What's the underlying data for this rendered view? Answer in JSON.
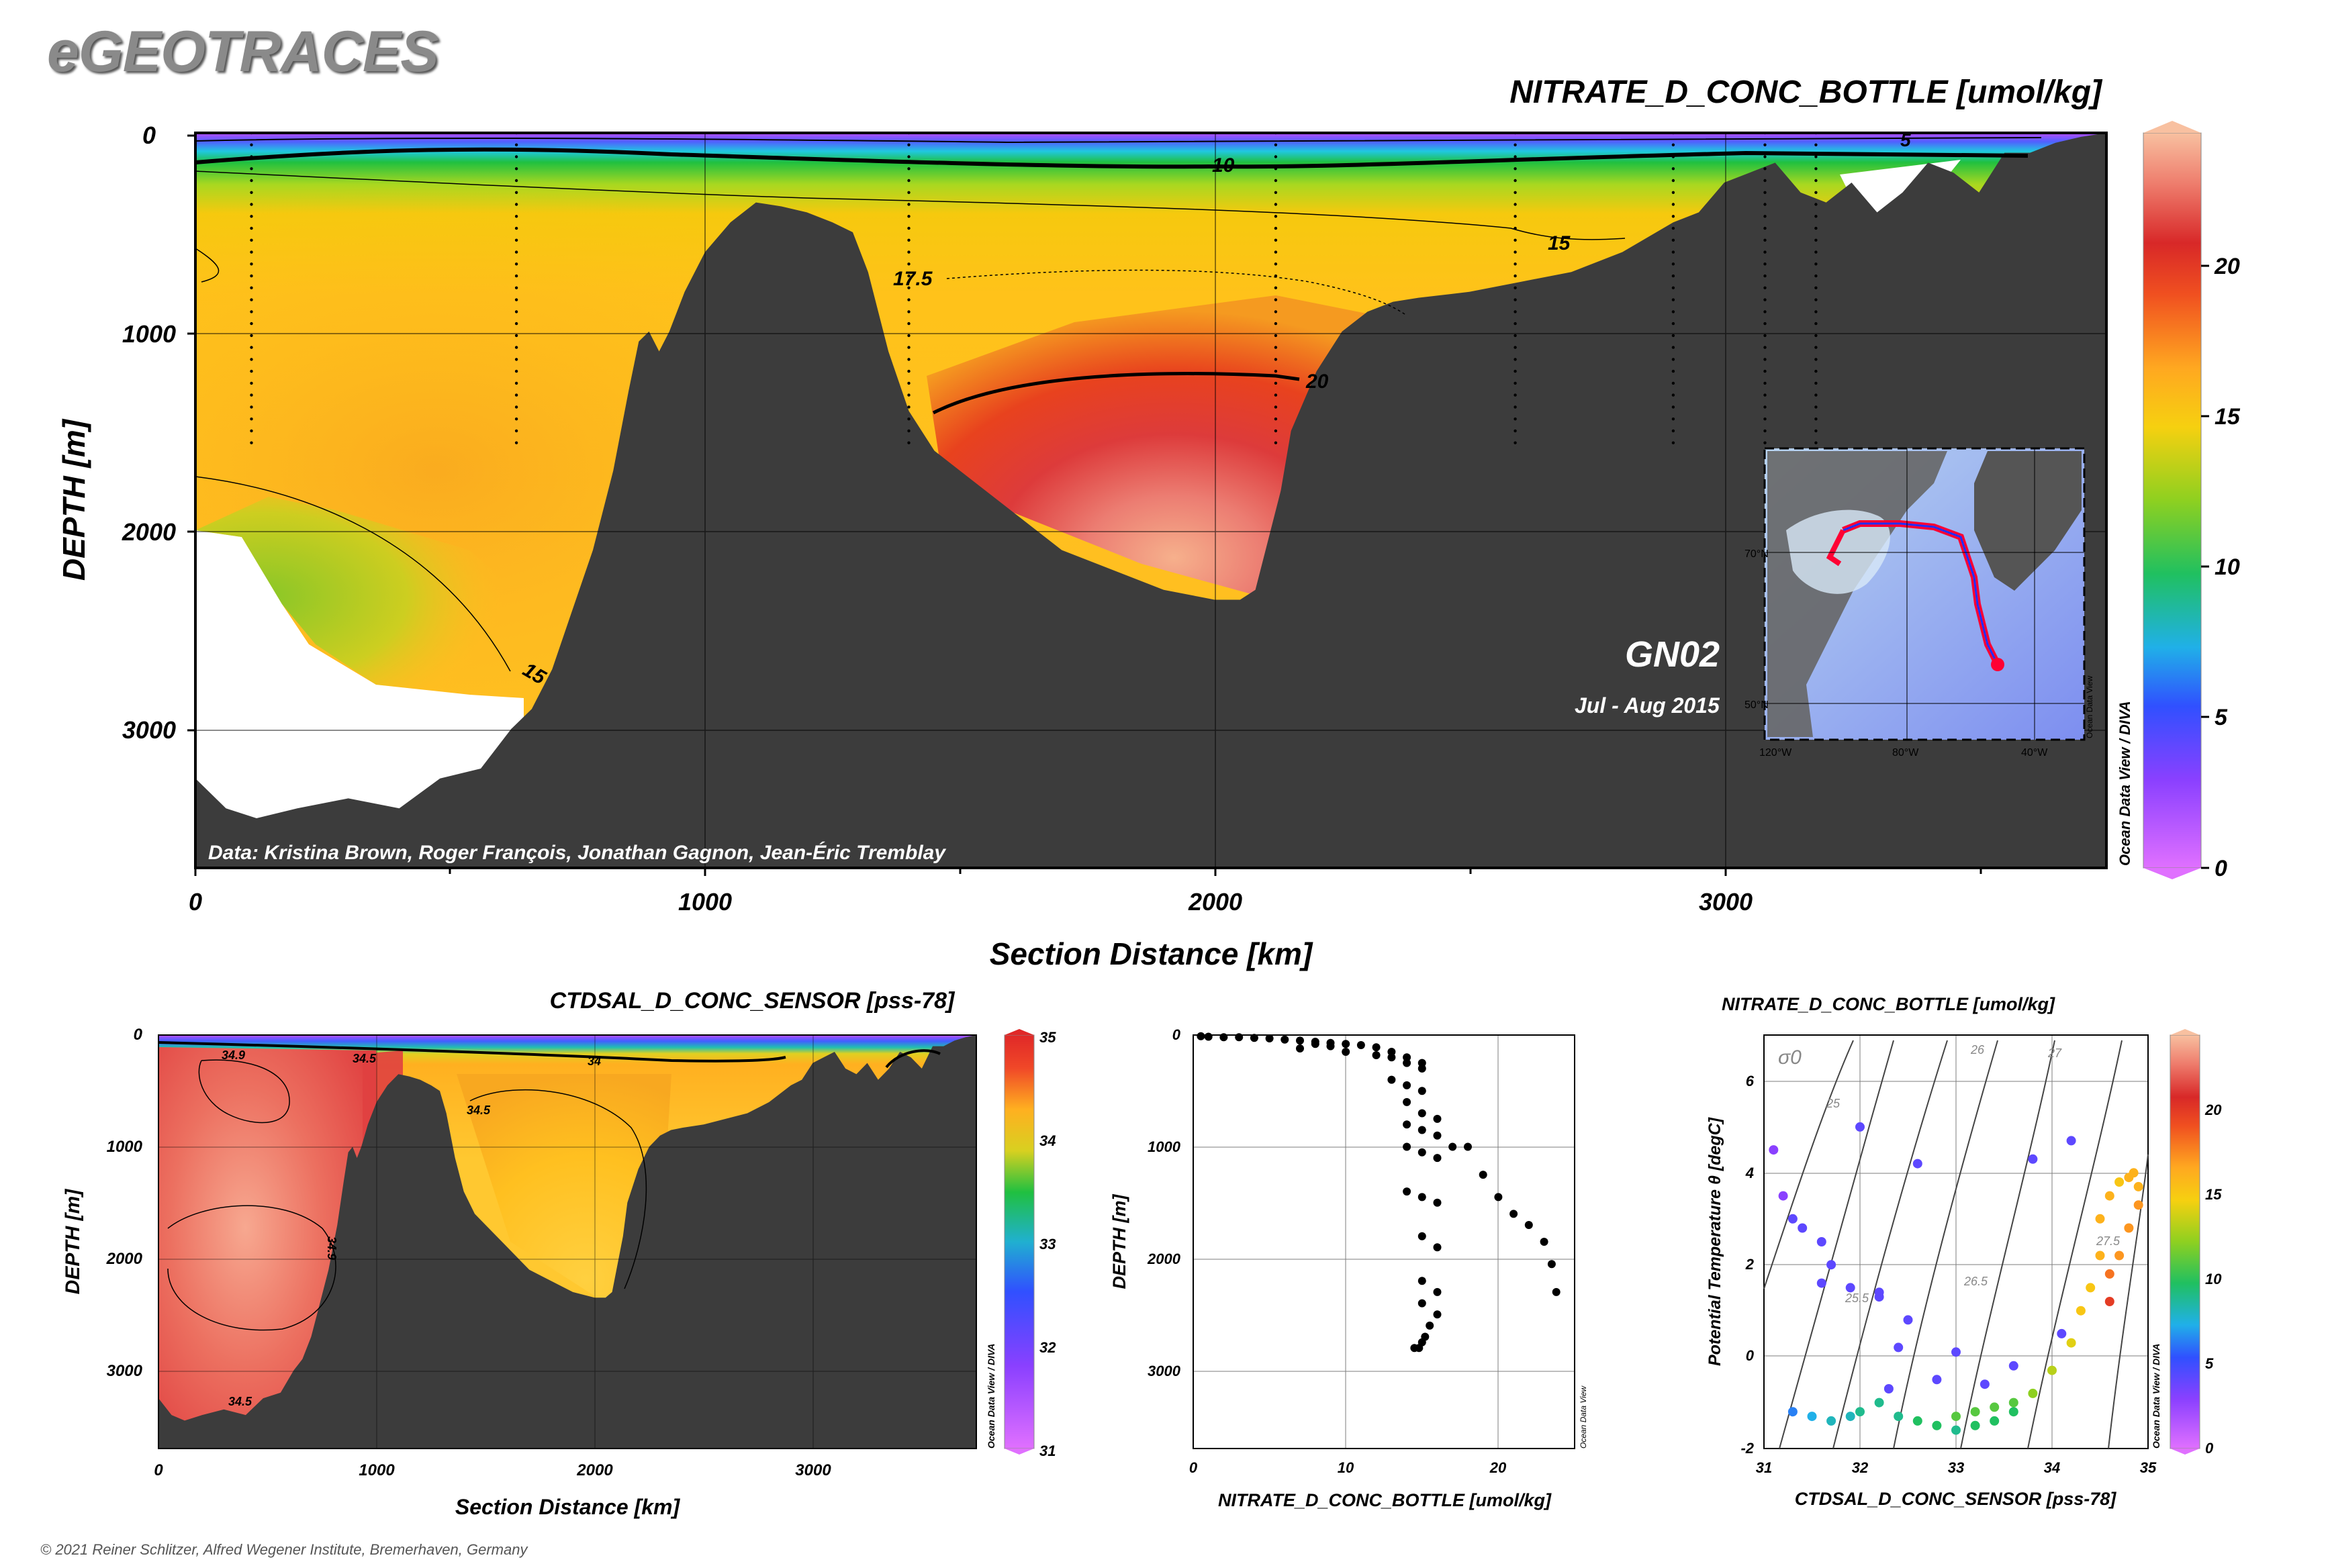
{
  "logo": "eGEOTRACES",
  "main": {
    "title": "NITRATE_D_CONC_BOTTLE [umol/kg]",
    "ylabel": "DEPTH [m]",
    "xlabel": "Section Distance [km]",
    "yticks": [
      "0",
      "1000",
      "2000",
      "3000"
    ],
    "xticks": [
      "0",
      "1000",
      "2000",
      "3000"
    ],
    "credit": "Data: Kristina Brown, Roger François, Jonathan Gagnon, Jean-Éric Tremblay",
    "cruise": "GN02",
    "date": "Jul - Aug 2015",
    "contour_labels": [
      "10",
      "15",
      "17.5",
      "20",
      "15",
      "5"
    ],
    "colorbar_ticks": [
      "0",
      "5",
      "10",
      "15",
      "20"
    ],
    "colorbar_caption": "Ocean Data View / DIVA",
    "map": {
      "lat_labels": [
        "70°N",
        "50°N"
      ],
      "lon_labels": [
        "120°W",
        "80°W",
        "40°W"
      ],
      "caption": "Ocean Data View"
    }
  },
  "salinity_panel": {
    "title": "CTDSAL_D_CONC_SENSOR [pss-78]",
    "ylabel": "DEPTH [m]",
    "xlabel": "Section Distance [km]",
    "yticks": [
      "0",
      "1000",
      "2000",
      "3000"
    ],
    "xticks": [
      "0",
      "1000",
      "2000",
      "3000"
    ],
    "contour_labels": [
      "34.9",
      "34.5",
      "34",
      "34.5",
      "34.9",
      "34.5"
    ],
    "colorbar_ticks": [
      "31",
      "32",
      "33",
      "34",
      "35"
    ],
    "colorbar_caption": "Ocean Data View / DIVA"
  },
  "profile_panel": {
    "xlabel": "NITRATE_D_CONC_BOTTLE [umol/kg]",
    "ylabel": "DEPTH [m]",
    "xticks": [
      "0",
      "10",
      "20"
    ],
    "yticks": [
      "0",
      "1000",
      "2000",
      "3000"
    ],
    "caption": "Ocean Data View"
  },
  "ts_panel": {
    "title": "NITRATE_D_CONC_BOTTLE [umol/kg]",
    "xlabel": "CTDSAL_D_CONC_SENSOR [pss-78]",
    "ylabel": "Potential Temperature θ [degC]",
    "xticks": [
      "31",
      "32",
      "33",
      "34",
      "35"
    ],
    "yticks": [
      "-2",
      "0",
      "2",
      "4",
      "6"
    ],
    "sigma_label": "σ0",
    "isopycnal_labels": [
      "25",
      "26",
      "27",
      "25.5",
      "26.5",
      "27.5"
    ],
    "colorbar_ticks": [
      "0",
      "5",
      "10",
      "15",
      "20"
    ],
    "colorbar_caption": "Ocean Data View / DIVA"
  },
  "copyright": "© 2021 Reiner Schlitzer, Alfred Wegener Institute, Bremerhaven, Germany",
  "chart_data": [
    {
      "type": "heatmap",
      "title": "NITRATE_D_CONC_BOTTLE [umol/kg]",
      "xlabel": "Section Distance [km]",
      "ylabel": "DEPTH [m]",
      "xlim": [
        0,
        3750
      ],
      "ylim": [
        3700,
        0
      ],
      "zlim": [
        0,
        24.5
      ],
      "colormap": "odv-rainbow",
      "bathymetry": {
        "x": [
          0,
          60,
          120,
          200,
          300,
          400,
          480,
          560,
          620,
          660,
          700,
          740,
          780,
          820,
          850,
          870,
          890,
          910,
          930,
          960,
          1000,
          1050,
          1100,
          1150,
          1200,
          1250,
          1290,
          1320,
          1360,
          1400,
          1450,
          1500,
          1600,
          1700,
          1800,
          1900,
          2000,
          2050,
          2080,
          2100,
          2130,
          2150,
          2200,
          2250,
          2300,
          2350,
          2400,
          2500,
          2600,
          2700,
          2800,
          2900,
          2950,
          3000,
          3050,
          3100,
          3150,
          3200,
          3250,
          3300,
          3350,
          3400,
          3450,
          3500,
          3550,
          3600,
          3650,
          3700,
          3750
        ],
        "depth": [
          3250,
          3400,
          3450,
          3400,
          3350,
          3400,
          3250,
          3200,
          3000,
          2900,
          2700,
          2400,
          2100,
          1700,
          1300,
          1050,
          1000,
          1100,
          1000,
          800,
          600,
          450,
          350,
          370,
          400,
          450,
          500,
          700,
          1100,
          1400,
          1600,
          1700,
          1900,
          2100,
          2200,
          2300,
          2350,
          2350,
          2300,
          2100,
          1800,
          1500,
          1200,
          1000,
          900,
          850,
          830,
          800,
          750,
          700,
          600,
          450,
          400,
          250,
          200,
          150,
          300,
          350,
          250,
          400,
          300,
          150,
          200,
          300,
          100,
          100,
          50,
          20,
          0
        ]
      },
      "contours": [
        {
          "level": 5,
          "label": "5"
        },
        {
          "level": 10,
          "label": "10"
        },
        {
          "level": 15,
          "label": "15"
        },
        {
          "level": 17.5,
          "label": "17.5"
        },
        {
          "level": 20,
          "label": "20"
        }
      ],
      "station_x": [
        110,
        630,
        1400,
        2120,
        2590,
        2900,
        3080,
        3180
      ]
    },
    {
      "type": "heatmap",
      "title": "CTDSAL_D_CONC_SENSOR [pss-78]",
      "xlabel": "Section Distance [km]",
      "ylabel": "DEPTH [m]",
      "xlim": [
        0,
        3750
      ],
      "ylim": [
        3700,
        0
      ],
      "zlim": [
        31,
        35
      ],
      "contours": [
        {
          "level": 34,
          "label": "34"
        },
        {
          "level": 34.5,
          "label": "34.5"
        },
        {
          "level": 34.9,
          "label": "34.9"
        }
      ]
    },
    {
      "type": "scatter",
      "xlabel": "NITRATE_D_CONC_BOTTLE [umol/kg]",
      "ylabel": "DEPTH [m]",
      "xlim": [
        0,
        25
      ],
      "ylim": [
        3700,
        0
      ],
      "x": [
        0.5,
        1,
        2,
        3,
        4,
        5,
        6,
        7,
        8,
        9,
        10,
        11,
        12,
        13,
        14,
        15,
        7,
        8,
        9,
        10,
        12,
        13,
        14,
        15,
        13,
        14,
        15,
        14,
        15,
        16,
        14,
        15,
        16,
        17,
        14,
        15,
        16,
        14,
        15,
        16,
        18,
        19,
        15,
        16,
        20,
        21,
        15,
        16,
        22,
        23,
        15,
        16,
        23.5,
        23.8,
        15.5,
        15.2,
        15,
        14.8,
        14.5
      ],
      "y": [
        10,
        15,
        20,
        20,
        25,
        30,
        40,
        50,
        60,
        70,
        80,
        90,
        110,
        150,
        200,
        250,
        120,
        80,
        100,
        150,
        180,
        200,
        250,
        300,
        400,
        450,
        500,
        600,
        700,
        750,
        800,
        850,
        900,
        1000,
        1000,
        1050,
        1100,
        1400,
        1450,
        1500,
        1000,
        1250,
        1800,
        1900,
        1450,
        1600,
        2200,
        2300,
        1700,
        1850,
        2400,
        2500,
        2050,
        2300,
        2600,
        2700,
        2750,
        2800,
        2800
      ]
    },
    {
      "type": "scatter",
      "title": "NITRATE_D_CONC_BOTTLE [umol/kg]",
      "xlabel": "CTDSAL_D_CONC_SENSOR [pss-78]",
      "ylabel": "Potential Temperature θ [degC]",
      "xlim": [
        31,
        35
      ],
      "ylim": [
        -2,
        7
      ],
      "zlim": [
        0,
        24.5
      ],
      "x": [
        31.1,
        31.2,
        31.3,
        31.4,
        31.6,
        31.7,
        31.9,
        32.2,
        32.5,
        31.3,
        31.5,
        31.7,
        31.9,
        32.0,
        32.2,
        32.4,
        32.6,
        32.8,
        33.0,
        33.2,
        33.4,
        33.6,
        33.0,
        33.2,
        33.4,
        33.6,
        33.8,
        34.0,
        34.2,
        34.3,
        34.4,
        34.5,
        34.5,
        34.6,
        34.7,
        34.8,
        34.85,
        34.9,
        34.9,
        34.8,
        34.7,
        34.6,
        34.6,
        32.3,
        32.8,
        33.3,
        33.6,
        33.8,
        34.2,
        32.6,
        32.0,
        32.4,
        31.6,
        32.2,
        33.0,
        34.1
      ],
      "y": [
        4.5,
        3.5,
        3.0,
        2.8,
        2.5,
        2.0,
        1.5,
        1.3,
        0.8,
        -1.2,
        -1.3,
        -1.4,
        -1.3,
        -1.2,
        -1.0,
        -1.3,
        -1.4,
        -1.5,
        -1.3,
        -1.2,
        -1.1,
        -1.2,
        -1.6,
        -1.5,
        -1.4,
        -1.0,
        -0.8,
        -0.3,
        0.3,
        1.0,
        1.5,
        2.2,
        3.0,
        3.5,
        3.8,
        3.9,
        4.0,
        3.7,
        3.3,
        2.8,
        2.2,
        1.8,
        1.2,
        -0.7,
        -0.5,
        -0.6,
        -0.2,
        4.3,
        4.7,
        4.2,
        5.0,
        0.2,
        1.6,
        1.4,
        0.1,
        0.5
      ],
      "z": [
        3,
        3,
        4,
        4,
        4,
        4,
        4,
        4,
        4,
        6,
        7,
        8,
        8,
        9,
        9,
        9,
        10,
        10,
        11,
        11,
        11,
        10,
        9,
        10,
        10,
        11,
        12,
        13,
        14,
        15,
        15,
        16,
        16,
        16,
        15,
        16,
        16,
        16,
        17,
        17,
        17,
        18,
        20,
        4,
        4,
        4,
        4,
        4,
        4,
        4,
        4,
        4,
        4,
        4,
        4,
        4
      ]
    }
  ]
}
